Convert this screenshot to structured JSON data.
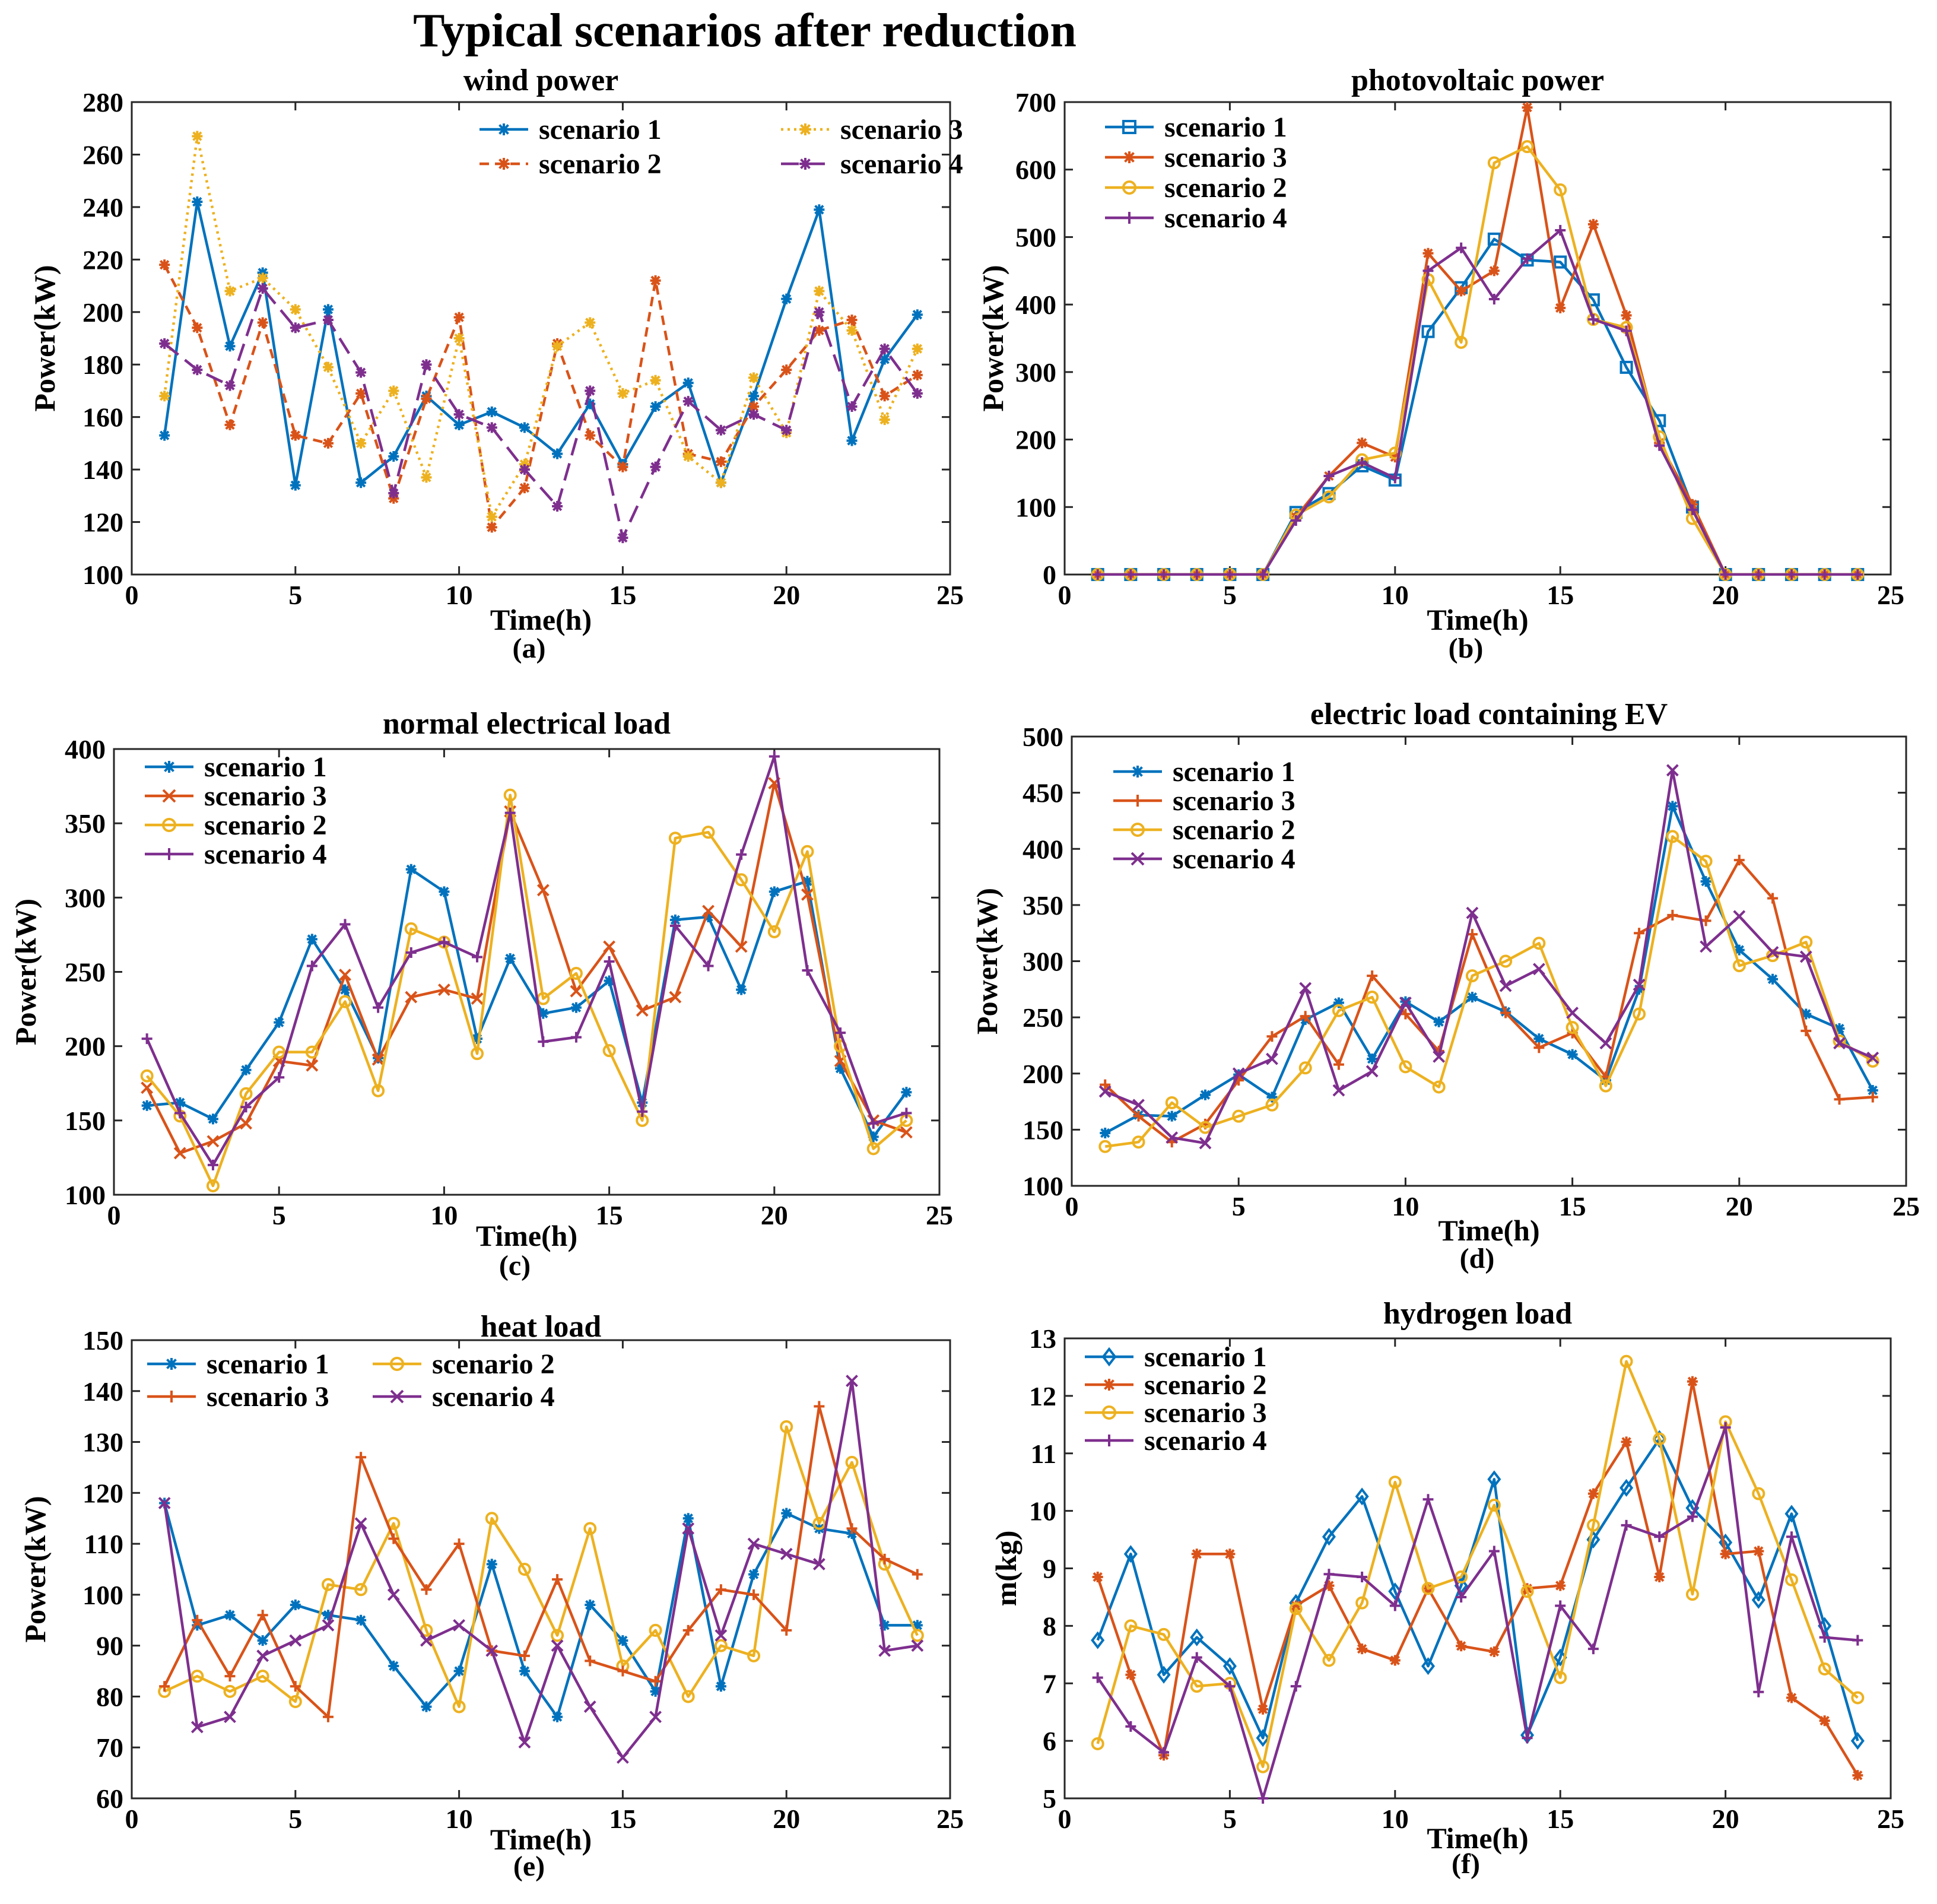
{
  "figure": {
    "title": "Typical scenarios after reduction"
  },
  "colors": {
    "blue": "#0072BD",
    "orange": "#D95319",
    "yellow": "#EDB120",
    "purple": "#7E2F8E"
  },
  "chart_data": [
    {
      "id": "a",
      "type": "line",
      "title": "wind power",
      "caption": "(a)",
      "xlabel": "Time(h)",
      "ylabel": "Power(kW)",
      "xlim": [
        0,
        25
      ],
      "ylim": [
        100,
        280
      ],
      "xticks": [
        0,
        5,
        10,
        15,
        20,
        25
      ],
      "yticks": [
        100,
        120,
        140,
        160,
        180,
        200,
        220,
        240,
        260,
        280
      ],
      "grid": false,
      "legend_placement": "top-right",
      "legend_columns": 2,
      "x": [
        1,
        2,
        3,
        4,
        5,
        6,
        7,
        8,
        9,
        10,
        11,
        12,
        13,
        14,
        15,
        16,
        17,
        18,
        19,
        20,
        21,
        22,
        23,
        24
      ],
      "series": [
        {
          "name": "scenario 1",
          "color": "blue",
          "dash": "solid",
          "marker": "asterisk",
          "values": [
            153,
            242,
            187,
            215,
            134,
            201,
            135,
            145,
            168,
            157,
            162,
            156,
            146,
            165,
            142,
            164,
            173,
            135,
            168,
            205,
            239,
            151,
            182,
            199
          ]
        },
        {
          "name": "scenario 2",
          "color": "orange",
          "dash": "dashed",
          "marker": "asterisk",
          "values": [
            218,
            194,
            157,
            196,
            153,
            150,
            169,
            129,
            167,
            198,
            118,
            133,
            188,
            153,
            141,
            212,
            146,
            143,
            164,
            178,
            193,
            197,
            168,
            176
          ]
        },
        {
          "name": "scenario 3",
          "color": "yellow",
          "dash": "dotted",
          "marker": "asterisk",
          "values": [
            168,
            267,
            208,
            213,
            201,
            179,
            150,
            170,
            137,
            190,
            122,
            142,
            187,
            196,
            169,
            174,
            145,
            135,
            175,
            154,
            208,
            193,
            159,
            186
          ]
        },
        {
          "name": "scenario 4",
          "color": "purple",
          "dash": "longdash",
          "marker": "asterisk",
          "values": [
            188,
            178,
            172,
            209,
            194,
            197,
            177,
            131,
            180,
            161,
            156,
            140,
            126,
            170,
            114,
            141,
            166,
            155,
            161,
            155,
            200,
            164,
            186,
            169
          ]
        }
      ],
      "legend_order": [
        0,
        2,
        1,
        3
      ]
    },
    {
      "id": "b",
      "type": "line",
      "title": "photovoltaic power",
      "caption": "(b)",
      "xlabel": "Time(h)",
      "ylabel": "Power(kW)",
      "xlim": [
        0,
        25
      ],
      "ylim": [
        0,
        700
      ],
      "xticks": [
        0,
        5,
        10,
        15,
        20,
        25
      ],
      "yticks": [
        0,
        100,
        200,
        300,
        400,
        500,
        600,
        700
      ],
      "grid": false,
      "legend_placement": "top-left",
      "legend_columns": 1,
      "x": [
        1,
        2,
        3,
        4,
        5,
        6,
        7,
        8,
        9,
        10,
        11,
        12,
        13,
        14,
        15,
        16,
        17,
        18,
        19,
        20,
        21,
        22,
        23,
        24
      ],
      "series": [
        {
          "name": "scenario 1",
          "color": "blue",
          "dash": "solid",
          "marker": "square",
          "values": [
            0,
            0,
            0,
            0,
            0,
            0,
            92,
            120,
            161,
            140,
            360,
            425,
            497,
            466,
            463,
            407,
            307,
            228,
            100,
            0,
            0,
            0,
            0,
            0
          ]
        },
        {
          "name": "scenario 3",
          "color": "orange",
          "dash": "solid",
          "marker": "asterisk",
          "values": [
            0,
            0,
            0,
            0,
            0,
            0,
            85,
            146,
            195,
            174,
            476,
            420,
            450,
            692,
            395,
            519,
            384,
            195,
            104,
            0,
            0,
            0,
            0,
            0
          ]
        },
        {
          "name": "scenario 2",
          "color": "yellow",
          "dash": "solid",
          "marker": "circle",
          "values": [
            0,
            0,
            0,
            0,
            0,
            0,
            88,
            115,
            170,
            180,
            437,
            344,
            610,
            634,
            570,
            378,
            366,
            204,
            83,
            0,
            0,
            0,
            0,
            0
          ]
        },
        {
          "name": "scenario 4",
          "color": "purple",
          "dash": "solid",
          "marker": "plus",
          "values": [
            0,
            0,
            0,
            0,
            0,
            0,
            80,
            146,
            166,
            143,
            450,
            484,
            408,
            468,
            510,
            378,
            361,
            191,
            96,
            0,
            0,
            0,
            0,
            0
          ]
        }
      ],
      "legend_order": [
        0,
        1,
        2,
        3
      ]
    },
    {
      "id": "c",
      "type": "line",
      "title": "normal electrical load",
      "caption": "(c)",
      "xlabel": "Time(h)",
      "ylabel": "Power(kW)",
      "xlim": [
        0,
        25
      ],
      "ylim": [
        100,
        400
      ],
      "xticks": [
        0,
        5,
        10,
        15,
        20,
        25
      ],
      "yticks": [
        100,
        150,
        200,
        250,
        300,
        350,
        400
      ],
      "grid": false,
      "legend_placement": "top-left",
      "legend_columns": 1,
      "x": [
        1,
        2,
        3,
        4,
        5,
        6,
        7,
        8,
        9,
        10,
        11,
        12,
        13,
        14,
        15,
        16,
        17,
        18,
        19,
        20,
        21,
        22,
        23,
        24
      ],
      "series": [
        {
          "name": "scenario 1",
          "color": "blue",
          "dash": "solid",
          "marker": "asterisk",
          "values": [
            160,
            162,
            151,
            184,
            216,
            272,
            238,
            192,
            319,
            304,
            205,
            259,
            222,
            226,
            244,
            162,
            285,
            287,
            238,
            304,
            311,
            185,
            139,
            169
          ]
        },
        {
          "name": "scenario 3",
          "color": "orange",
          "dash": "solid",
          "marker": "cross",
          "values": [
            172,
            128,
            136,
            148,
            190,
            187,
            248,
            191,
            233,
            238,
            232,
            358,
            305,
            237,
            267,
            224,
            233,
            291,
            267,
            377,
            302,
            190,
            150,
            142
          ]
        },
        {
          "name": "scenario 2",
          "color": "yellow",
          "dash": "solid",
          "marker": "circle",
          "values": [
            180,
            153,
            106,
            168,
            196,
            196,
            230,
            170,
            279,
            270,
            195,
            369,
            232,
            249,
            197,
            150,
            340,
            344,
            312,
            277,
            331,
            200,
            131,
            150
          ]
        },
        {
          "name": "scenario 4",
          "color": "purple",
          "dash": "solid",
          "marker": "plus",
          "values": [
            205,
            155,
            120,
            159,
            179,
            254,
            282,
            226,
            263,
            270,
            260,
            357,
            203,
            206,
            257,
            156,
            281,
            254,
            329,
            395,
            251,
            209,
            148,
            155
          ]
        }
      ],
      "legend_order": [
        0,
        1,
        2,
        3
      ]
    },
    {
      "id": "d",
      "type": "line",
      "title": "electric load containing EV",
      "caption": "(d)",
      "xlabel": "Time(h)",
      "ylabel": "Power(kW)",
      "xlim": [
        0,
        25
      ],
      "ylim": [
        100,
        500
      ],
      "xticks": [
        0,
        5,
        10,
        15,
        20,
        25
      ],
      "yticks": [
        100,
        150,
        200,
        250,
        300,
        350,
        400,
        450,
        500
      ],
      "grid": false,
      "legend_placement": "top-left",
      "legend_columns": 1,
      "x": [
        1,
        2,
        3,
        4,
        5,
        6,
        7,
        8,
        9,
        10,
        11,
        12,
        13,
        14,
        15,
        16,
        17,
        18,
        19,
        20,
        21,
        22,
        23,
        24
      ],
      "series": [
        {
          "name": "scenario 1",
          "color": "blue",
          "dash": "solid",
          "marker": "asterisk",
          "values": [
            147,
            163,
            162,
            181,
            199,
            179,
            248,
            263,
            213,
            264,
            246,
            268,
            255,
            231,
            217,
            194,
            275,
            438,
            371,
            310,
            284,
            253,
            240,
            185
          ]
        },
        {
          "name": "scenario 3",
          "color": "orange",
          "dash": "solid",
          "marker": "plus",
          "values": [
            190,
            162,
            139,
            155,
            194,
            233,
            251,
            208,
            287,
            253,
            220,
            324,
            254,
            223,
            236,
            197,
            325,
            341,
            336,
            390,
            356,
            238,
            177,
            179
          ]
        },
        {
          "name": "scenario 2",
          "color": "yellow",
          "dash": "solid",
          "marker": "circle",
          "values": [
            135,
            139,
            174,
            152,
            162,
            172,
            205,
            256,
            268,
            206,
            188,
            287,
            300,
            316,
            241,
            189,
            253,
            411,
            389,
            296,
            305,
            317,
            229,
            211
          ]
        },
        {
          "name": "scenario 4",
          "color": "purple",
          "dash": "solid",
          "marker": "cross",
          "values": [
            184,
            172,
            143,
            138,
            200,
            213,
            276,
            185,
            202,
            263,
            215,
            343,
            278,
            293,
            254,
            227,
            279,
            470,
            313,
            340,
            308,
            304,
            227,
            214
          ]
        }
      ],
      "legend_order": [
        0,
        1,
        2,
        3
      ]
    },
    {
      "id": "e",
      "type": "line",
      "title": "heat load",
      "caption": "(e)",
      "xlabel": "Time(h)",
      "ylabel": "Power(kW)",
      "xlim": [
        0,
        25
      ],
      "ylim": [
        60,
        150
      ],
      "xticks": [
        0,
        5,
        10,
        15,
        20,
        25
      ],
      "yticks": [
        60,
        70,
        80,
        90,
        100,
        110,
        120,
        130,
        140,
        150
      ],
      "grid": false,
      "legend_placement": "top-left",
      "legend_columns": 2,
      "x": [
        1,
        2,
        3,
        4,
        5,
        6,
        7,
        8,
        9,
        10,
        11,
        12,
        13,
        14,
        15,
        16,
        17,
        18,
        19,
        20,
        21,
        22,
        23,
        24
      ],
      "series": [
        {
          "name": "scenario 1",
          "color": "blue",
          "dash": "solid",
          "marker": "asterisk",
          "values": [
            118,
            94,
            96,
            91,
            98,
            96,
            95,
            86,
            78,
            85,
            106,
            85,
            76,
            98,
            91,
            81,
            115,
            82,
            104,
            116,
            113,
            112,
            94,
            94
          ]
        },
        {
          "name": "scenario 2",
          "color": "yellow",
          "dash": "solid",
          "marker": "circle",
          "values": [
            81,
            84,
            81,
            84,
            79,
            102,
            101,
            114,
            93,
            78,
            115,
            105,
            92,
            113,
            86,
            93,
            80,
            90,
            88,
            133,
            114,
            126,
            106,
            92
          ]
        },
        {
          "name": "scenario 3",
          "color": "orange",
          "dash": "solid",
          "marker": "plus",
          "values": [
            82,
            95,
            84,
            96,
            82,
            76,
            127,
            111,
            101,
            110,
            89,
            88,
            103,
            87,
            85,
            83,
            93,
            101,
            100,
            93,
            137,
            113,
            107,
            104
          ]
        },
        {
          "name": "scenario 4",
          "color": "purple",
          "dash": "solid",
          "marker": "cross",
          "values": [
            118,
            74,
            76,
            88,
            91,
            94,
            114,
            100,
            91,
            94,
            89,
            71,
            90,
            78,
            68,
            76,
            113,
            92,
            110,
            108,
            106,
            142,
            89,
            90
          ]
        }
      ],
      "legend_order": [
        0,
        1,
        2,
        3
      ]
    },
    {
      "id": "f",
      "type": "line",
      "title": "hydrogen load",
      "caption": "(f)",
      "xlabel": "Time(h)",
      "ylabel": "m(kg)",
      "xlim": [
        0,
        25
      ],
      "ylim": [
        5,
        13
      ],
      "xticks": [
        0,
        5,
        10,
        15,
        20,
        25
      ],
      "yticks": [
        5,
        6,
        7,
        8,
        9,
        10,
        11,
        12,
        13
      ],
      "grid": false,
      "legend_placement": "top-left",
      "legend_columns": 1,
      "x": [
        1,
        2,
        3,
        4,
        5,
        6,
        7,
        8,
        9,
        10,
        11,
        12,
        13,
        14,
        15,
        16,
        17,
        18,
        19,
        20,
        21,
        22,
        23,
        24
      ],
      "series": [
        {
          "name": "scenario 1",
          "color": "blue",
          "dash": "solid",
          "marker": "diamond",
          "values": [
            7.75,
            9.25,
            7.15,
            7.8,
            7.3,
            6.05,
            8.4,
            9.55,
            10.25,
            8.6,
            7.3,
            8.7,
            10.55,
            6.1,
            7.45,
            9.5,
            10.4,
            11.25,
            10.05,
            9.45,
            8.45,
            9.95,
            8.0,
            6.0
          ]
        },
        {
          "name": "scenario 2",
          "color": "orange",
          "dash": "solid",
          "marker": "asterisk",
          "values": [
            8.85,
            7.15,
            5.75,
            9.25,
            9.25,
            6.55,
            8.35,
            8.7,
            7.6,
            7.4,
            8.65,
            7.65,
            7.55,
            8.65,
            8.7,
            10.3,
            11.2,
            8.85,
            12.25,
            9.25,
            9.3,
            6.75,
            6.35,
            5.4
          ]
        },
        {
          "name": "scenario 3",
          "color": "yellow",
          "dash": "solid",
          "marker": "circle",
          "values": [
            5.95,
            8.0,
            7.85,
            6.95,
            7.0,
            5.55,
            8.3,
            7.4,
            8.4,
            10.5,
            8.65,
            8.85,
            10.1,
            8.6,
            7.1,
            9.75,
            12.6,
            11.25,
            8.55,
            11.55,
            10.3,
            8.8,
            7.25,
            6.75
          ]
        },
        {
          "name": "scenario 4",
          "color": "purple",
          "dash": "solid",
          "marker": "plus",
          "values": [
            7.1,
            6.25,
            5.8,
            7.45,
            6.95,
            5.0,
            6.95,
            8.9,
            8.85,
            8.35,
            10.2,
            8.5,
            9.3,
            6.05,
            8.35,
            7.6,
            9.75,
            9.55,
            9.9,
            11.45,
            6.85,
            9.55,
            7.8,
            7.75
          ]
        }
      ],
      "legend_order": [
        0,
        1,
        2,
        3
      ]
    }
  ]
}
